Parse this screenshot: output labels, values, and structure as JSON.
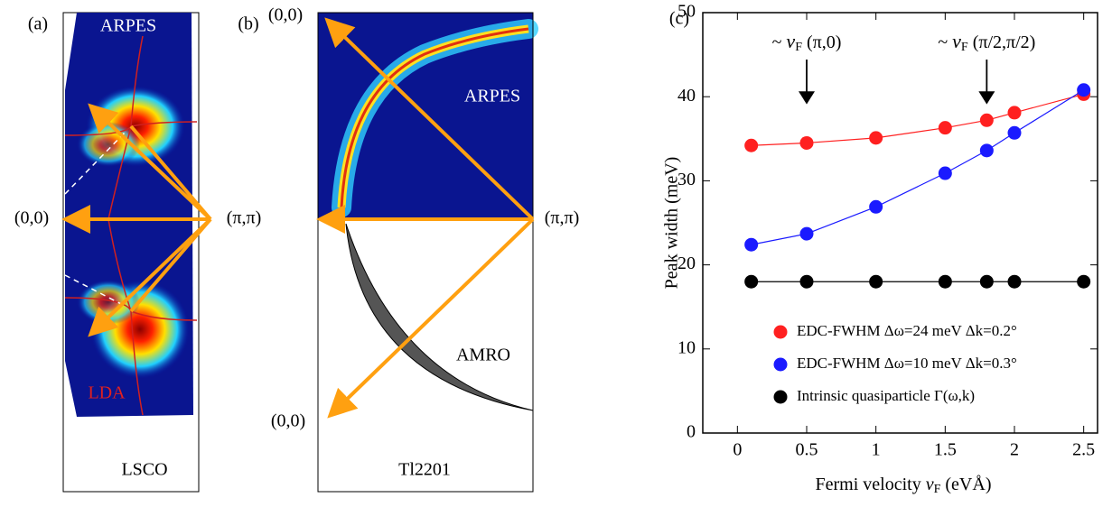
{
  "panels": [
    {
      "tag": "(a)",
      "labels": [
        "ARPES",
        "(0,0)",
        "(π,π)",
        "LDA"
      ],
      "caption": "LSCO"
    },
    {
      "tag": "(b)",
      "labels": [
        "(0,0)",
        "ARPES",
        "(π,π)",
        "AMRO",
        "(0,0)"
      ],
      "caption": "Tl2201"
    }
  ],
  "chart_data": {
    "type": "line",
    "tag": "(c)",
    "xlabel": {
      "text": "Fermi velocity",
      "symbol": "v",
      "subscript": "F",
      "unit": "(eVÅ)"
    },
    "ylabel": "Peak width  (meV)",
    "x": [
      0.1,
      0.5,
      1,
      1.5,
      1.8,
      2,
      2.5
    ],
    "series": [
      {
        "name": "EDC-FWHM   Δω=24 meV   Δk=0.2°",
        "color": "#ff2020",
        "values": [
          34.2,
          34.5,
          35.1,
          36.3,
          37.2,
          38.1,
          40.3
        ]
      },
      {
        "name": "EDC-FWHM   Δω=10 meV   Δk=0.3°",
        "color": "#1a1aff",
        "values": [
          22.4,
          23.7,
          26.9,
          30.9,
          33.6,
          35.7,
          40.8
        ]
      },
      {
        "name": "Intrinsic  quasiparticle  Γ(ω,k)",
        "color": "#000000",
        "values": [
          18,
          18,
          18,
          18,
          18,
          18,
          18
        ]
      }
    ],
    "annotations": [
      {
        "prefix": "~",
        "symbol": "v",
        "subscript": "F",
        "text": "(π,0)",
        "x": 0.5
      },
      {
        "prefix": "~",
        "symbol": "v",
        "subscript": "F",
        "text": "(π/2,π/2)",
        "x": 1.8
      }
    ],
    "xlim": [
      -0.25,
      2.6
    ],
    "ylim": [
      0,
      50
    ],
    "xticks": [
      0,
      0.5,
      1,
      1.5,
      2,
      2.5
    ],
    "yticks": [
      0,
      10,
      20,
      30,
      40,
      50
    ]
  }
}
